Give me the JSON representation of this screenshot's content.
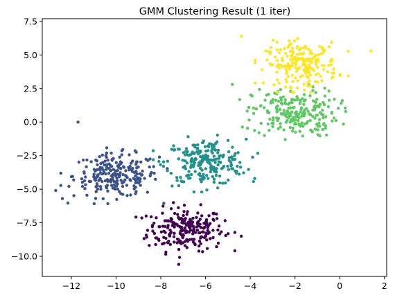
{
  "chart_data": {
    "type": "scatter",
    "title": "GMM Clustering Result (1 iter)",
    "xlabel": "",
    "ylabel": "",
    "xlim": [
      -13.3,
      2.1
    ],
    "ylim": [
      -11.5,
      7.7
    ],
    "x_ticks": [
      -12,
      -10,
      -8,
      -6,
      -4,
      -2,
      0,
      2
    ],
    "x_tick_labels": [
      "−12",
      "−10",
      "−8",
      "−6",
      "−4",
      "−2",
      "0",
      "2"
    ],
    "y_ticks": [
      -10,
      -7.5,
      -5,
      -2.5,
      0,
      2.5,
      5,
      7.5
    ],
    "y_tick_labels": [
      "−10.0",
      "−7.5",
      "−5.0",
      "−2.5",
      "0.0",
      "2.5",
      "5.0",
      "7.5"
    ],
    "grid": false,
    "legend": "none",
    "colormap": "viridis",
    "clusters": [
      {
        "color": "#440154",
        "center": [
          -6.9,
          -8.0
        ],
        "spread": [
          0.85,
          0.8
        ],
        "count": 230
      },
      {
        "color": "#3b528b",
        "center": [
          -10.0,
          -4.0
        ],
        "spread": [
          0.95,
          0.8
        ],
        "count": 230
      },
      {
        "color": "#21918c",
        "center": [
          -6.0,
          -3.0
        ],
        "spread": [
          0.9,
          0.85
        ],
        "count": 230
      },
      {
        "color": "#5ec962",
        "center": [
          -2.0,
          0.7
        ],
        "spread": [
          0.95,
          0.9
        ],
        "count": 230
      },
      {
        "color": "#fde725",
        "center": [
          -1.7,
          4.3
        ],
        "spread": [
          0.8,
          0.8
        ],
        "count": 210
      }
    ],
    "extra_points": [
      {
        "x": -11.7,
        "y": 0.0,
        "cluster": 1
      },
      {
        "x": -12.7,
        "y": -5.1,
        "cluster": 1
      },
      {
        "x": -12.4,
        "y": -5.7,
        "cluster": 1
      },
      {
        "x": -7.2,
        "y": -10.6,
        "cluster": 0
      },
      {
        "x": -4.4,
        "y": -8.5,
        "cluster": 0
      },
      {
        "x": -3.8,
        "y": -4.2,
        "cluster": 2
      },
      {
        "x": -4.4,
        "y": 6.4,
        "cluster": 4
      },
      {
        "x": 1.4,
        "y": 5.3,
        "cluster": 4
      },
      {
        "x": -4.8,
        "y": 2.8,
        "cluster": 3
      }
    ]
  }
}
